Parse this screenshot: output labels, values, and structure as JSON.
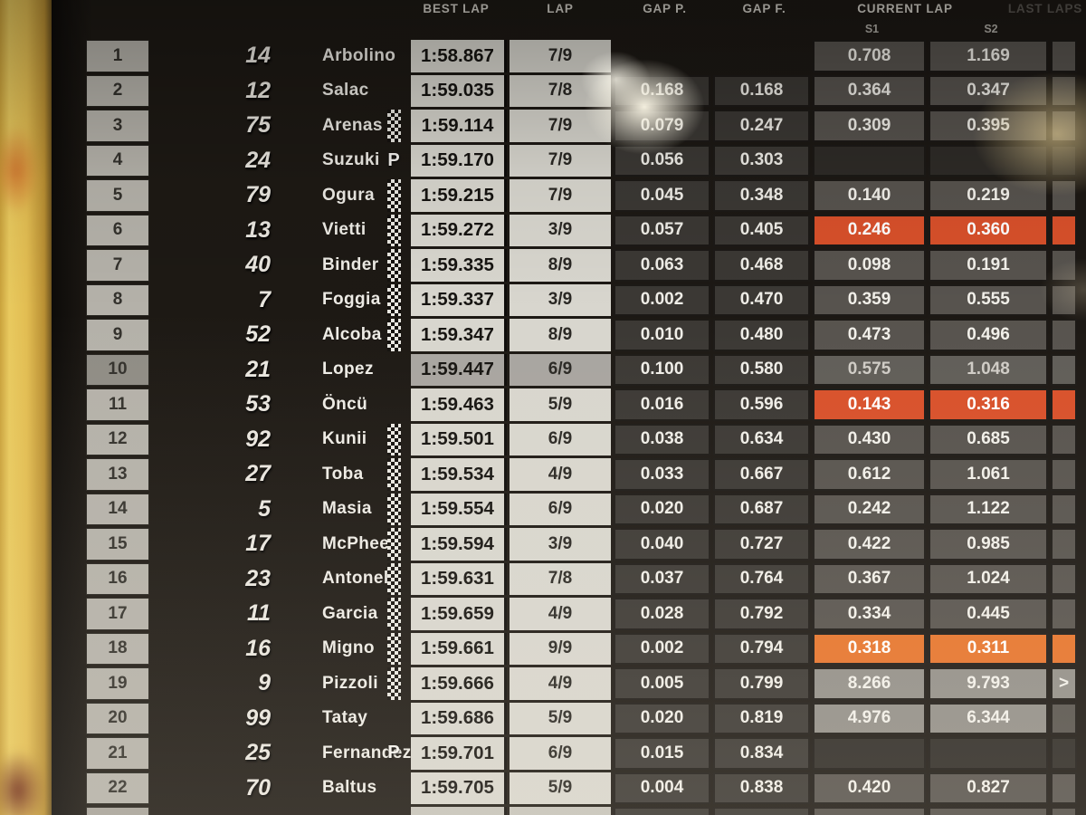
{
  "labels": {
    "best_lap": "BEST LAP",
    "lap": "LAP",
    "gap_p": "GAP P.",
    "gap_f": "GAP F.",
    "current_lap": "CURRENT LAP",
    "last_laps": "LAST LAPS",
    "s1": "S1",
    "s2": "S2",
    "pit": "P"
  },
  "colors": {
    "bg_screen": "#1c1814",
    "yellow_band": "#e2bd52",
    "cell_light": "#d8d6ce",
    "cell_pos": "#b4b1a9",
    "cell_gap": "#3b3834",
    "cell_sector": "#57534e",
    "sector_light": "#928f89",
    "hl_red": "#d8502a",
    "hl_orange": "#e6742c",
    "text_light": "#f4f2ee",
    "text_dark": "#1e1c19"
  },
  "rows": [
    {
      "pos": "1",
      "num": "14",
      "name": "Arbolino",
      "pit": false,
      "flag": false,
      "best": "1:58.867",
      "lap": "7/9",
      "gap_p": "",
      "gap_f": "",
      "s1": "0.708",
      "s2": "1.169",
      "s3": "",
      "s1_style": "default",
      "s2_style": "default",
      "s3_style": "default",
      "dim": false
    },
    {
      "pos": "2",
      "num": "12",
      "name": "Salac",
      "pit": false,
      "flag": false,
      "best": "1:59.035",
      "lap": "7/8",
      "gap_p": "0.168",
      "gap_f": "0.168",
      "s1": "0.364",
      "s2": "0.347",
      "s3": "",
      "s1_style": "default",
      "s2_style": "default",
      "s3_style": "default",
      "dim": false
    },
    {
      "pos": "3",
      "num": "75",
      "name": "Arenas",
      "pit": false,
      "flag": true,
      "best": "1:59.114",
      "lap": "7/9",
      "gap_p": "0.079",
      "gap_f": "0.247",
      "s1": "0.309",
      "s2": "0.395",
      "s3": "",
      "s1_style": "default",
      "s2_style": "default",
      "s3_style": "default",
      "dim": false
    },
    {
      "pos": "4",
      "num": "24",
      "name": "Suzuki",
      "pit": true,
      "flag": false,
      "best": "1:59.170",
      "lap": "7/9",
      "gap_p": "0.056",
      "gap_f": "0.303",
      "s1": "",
      "s2": "",
      "s3": "",
      "s1_style": "none",
      "s2_style": "none",
      "s3_style": "none",
      "dim": false
    },
    {
      "pos": "5",
      "num": "79",
      "name": "Ogura",
      "pit": false,
      "flag": true,
      "best": "1:59.215",
      "lap": "7/9",
      "gap_p": "0.045",
      "gap_f": "0.348",
      "s1": "0.140",
      "s2": "0.219",
      "s3": "",
      "s1_style": "default",
      "s2_style": "default",
      "s3_style": "default",
      "dim": false
    },
    {
      "pos": "6",
      "num": "13",
      "name": "Vietti",
      "pit": false,
      "flag": true,
      "best": "1:59.272",
      "lap": "3/9",
      "gap_p": "0.057",
      "gap_f": "0.405",
      "s1": "0.246",
      "s2": "0.360",
      "s3": "",
      "s1_style": "hl",
      "s2_style": "hl",
      "s3_style": "hl",
      "dim": false
    },
    {
      "pos": "7",
      "num": "40",
      "name": "Binder",
      "pit": false,
      "flag": true,
      "best": "1:59.335",
      "lap": "8/9",
      "gap_p": "0.063",
      "gap_f": "0.468",
      "s1": "0.098",
      "s2": "0.191",
      "s3": "",
      "s1_style": "default",
      "s2_style": "default",
      "s3_style": "default",
      "dim": false
    },
    {
      "pos": "8",
      "num": "7",
      "name": "Foggia",
      "pit": false,
      "flag": true,
      "best": "1:59.337",
      "lap": "3/9",
      "gap_p": "0.002",
      "gap_f": "0.470",
      "s1": "0.359",
      "s2": "0.555",
      "s3": "",
      "s1_style": "default",
      "s2_style": "default",
      "s3_style": "default",
      "dim": false
    },
    {
      "pos": "9",
      "num": "52",
      "name": "Alcoba",
      "pit": false,
      "flag": true,
      "best": "1:59.347",
      "lap": "8/9",
      "gap_p": "0.010",
      "gap_f": "0.480",
      "s1": "0.473",
      "s2": "0.496",
      "s3": "",
      "s1_style": "default",
      "s2_style": "default",
      "s3_style": "default",
      "dim": false
    },
    {
      "pos": "10",
      "num": "21",
      "name": "Lopez",
      "pit": false,
      "flag": false,
      "best": "1:59.447",
      "lap": "6/9",
      "gap_p": "0.100",
      "gap_f": "0.580",
      "s1": "0.575",
      "s2": "1.048",
      "s3": "",
      "s1_style": "default",
      "s2_style": "default",
      "s3_style": "default",
      "dim": true
    },
    {
      "pos": "11",
      "num": "53",
      "name": "Öncü",
      "pit": false,
      "flag": false,
      "best": "1:59.463",
      "lap": "5/9",
      "gap_p": "0.016",
      "gap_f": "0.596",
      "s1": "0.143",
      "s2": "0.316",
      "s3": "",
      "s1_style": "hl",
      "s2_style": "hl",
      "s3_style": "hl",
      "dim": false
    },
    {
      "pos": "12",
      "num": "92",
      "name": "Kunii",
      "pit": false,
      "flag": true,
      "best": "1:59.501",
      "lap": "6/9",
      "gap_p": "0.038",
      "gap_f": "0.634",
      "s1": "0.430",
      "s2": "0.685",
      "s3": "",
      "s1_style": "default",
      "s2_style": "default",
      "s3_style": "default",
      "dim": false
    },
    {
      "pos": "13",
      "num": "27",
      "name": "Toba",
      "pit": false,
      "flag": true,
      "best": "1:59.534",
      "lap": "4/9",
      "gap_p": "0.033",
      "gap_f": "0.667",
      "s1": "0.612",
      "s2": "1.061",
      "s3": "",
      "s1_style": "default",
      "s2_style": "default",
      "s3_style": "default",
      "dim": false
    },
    {
      "pos": "14",
      "num": "5",
      "name": "Masia",
      "pit": false,
      "flag": true,
      "best": "1:59.554",
      "lap": "6/9",
      "gap_p": "0.020",
      "gap_f": "0.687",
      "s1": "0.242",
      "s2": "1.122",
      "s3": "",
      "s1_style": "default",
      "s2_style": "default",
      "s3_style": "default",
      "dim": false
    },
    {
      "pos": "15",
      "num": "17",
      "name": "McPhee",
      "pit": false,
      "flag": true,
      "best": "1:59.594",
      "lap": "3/9",
      "gap_p": "0.040",
      "gap_f": "0.727",
      "s1": "0.422",
      "s2": "0.985",
      "s3": "",
      "s1_style": "default",
      "s2_style": "default",
      "s3_style": "default",
      "dim": false
    },
    {
      "pos": "16",
      "num": "23",
      "name": "Antonelli",
      "pit": false,
      "flag": true,
      "best": "1:59.631",
      "lap": "7/8",
      "gap_p": "0.037",
      "gap_f": "0.764",
      "s1": "0.367",
      "s2": "1.024",
      "s3": "",
      "s1_style": "default",
      "s2_style": "default",
      "s3_style": "default",
      "dim": false
    },
    {
      "pos": "17",
      "num": "11",
      "name": "Garcia",
      "pit": false,
      "flag": true,
      "best": "1:59.659",
      "lap": "4/9",
      "gap_p": "0.028",
      "gap_f": "0.792",
      "s1": "0.334",
      "s2": "0.445",
      "s3": "",
      "s1_style": "default",
      "s2_style": "default",
      "s3_style": "default",
      "dim": false
    },
    {
      "pos": "18",
      "num": "16",
      "name": "Migno",
      "pit": false,
      "flag": true,
      "best": "1:59.661",
      "lap": "9/9",
      "gap_p": "0.002",
      "gap_f": "0.794",
      "s1": "0.318",
      "s2": "0.311",
      "s3": "",
      "s1_style": "hl2",
      "s2_style": "hl2",
      "s3_style": "hl2",
      "dim": false
    },
    {
      "pos": "19",
      "num": "9",
      "name": "Pizzoli",
      "pit": false,
      "flag": true,
      "best": "1:59.666",
      "lap": "4/9",
      "gap_p": "0.005",
      "gap_f": "0.799",
      "s1": "8.266",
      "s2": "9.793",
      "s3": ">",
      "s1_style": "light",
      "s2_style": "light",
      "s3_style": "light",
      "dim": false
    },
    {
      "pos": "20",
      "num": "99",
      "name": "Tatay",
      "pit": false,
      "flag": false,
      "best": "1:59.686",
      "lap": "5/9",
      "gap_p": "0.020",
      "gap_f": "0.819",
      "s1": "4.976",
      "s2": "6.344",
      "s3": "",
      "s1_style": "light",
      "s2_style": "light",
      "s3_style": "default",
      "dim": false
    },
    {
      "pos": "21",
      "num": "25",
      "name": "Fernandez",
      "pit": true,
      "flag": false,
      "best": "1:59.701",
      "lap": "6/9",
      "gap_p": "0.015",
      "gap_f": "0.834",
      "s1": "",
      "s2": "",
      "s3": "",
      "s1_style": "none",
      "s2_style": "none",
      "s3_style": "none",
      "dim": false
    },
    {
      "pos": "22",
      "num": "70",
      "name": "Baltus",
      "pit": false,
      "flag": false,
      "best": "1:59.705",
      "lap": "5/9",
      "gap_p": "0.004",
      "gap_f": "0.838",
      "s1": "0.420",
      "s2": "0.827",
      "s3": "",
      "s1_style": "default",
      "s2_style": "default",
      "s3_style": "default",
      "dim": false
    }
  ]
}
